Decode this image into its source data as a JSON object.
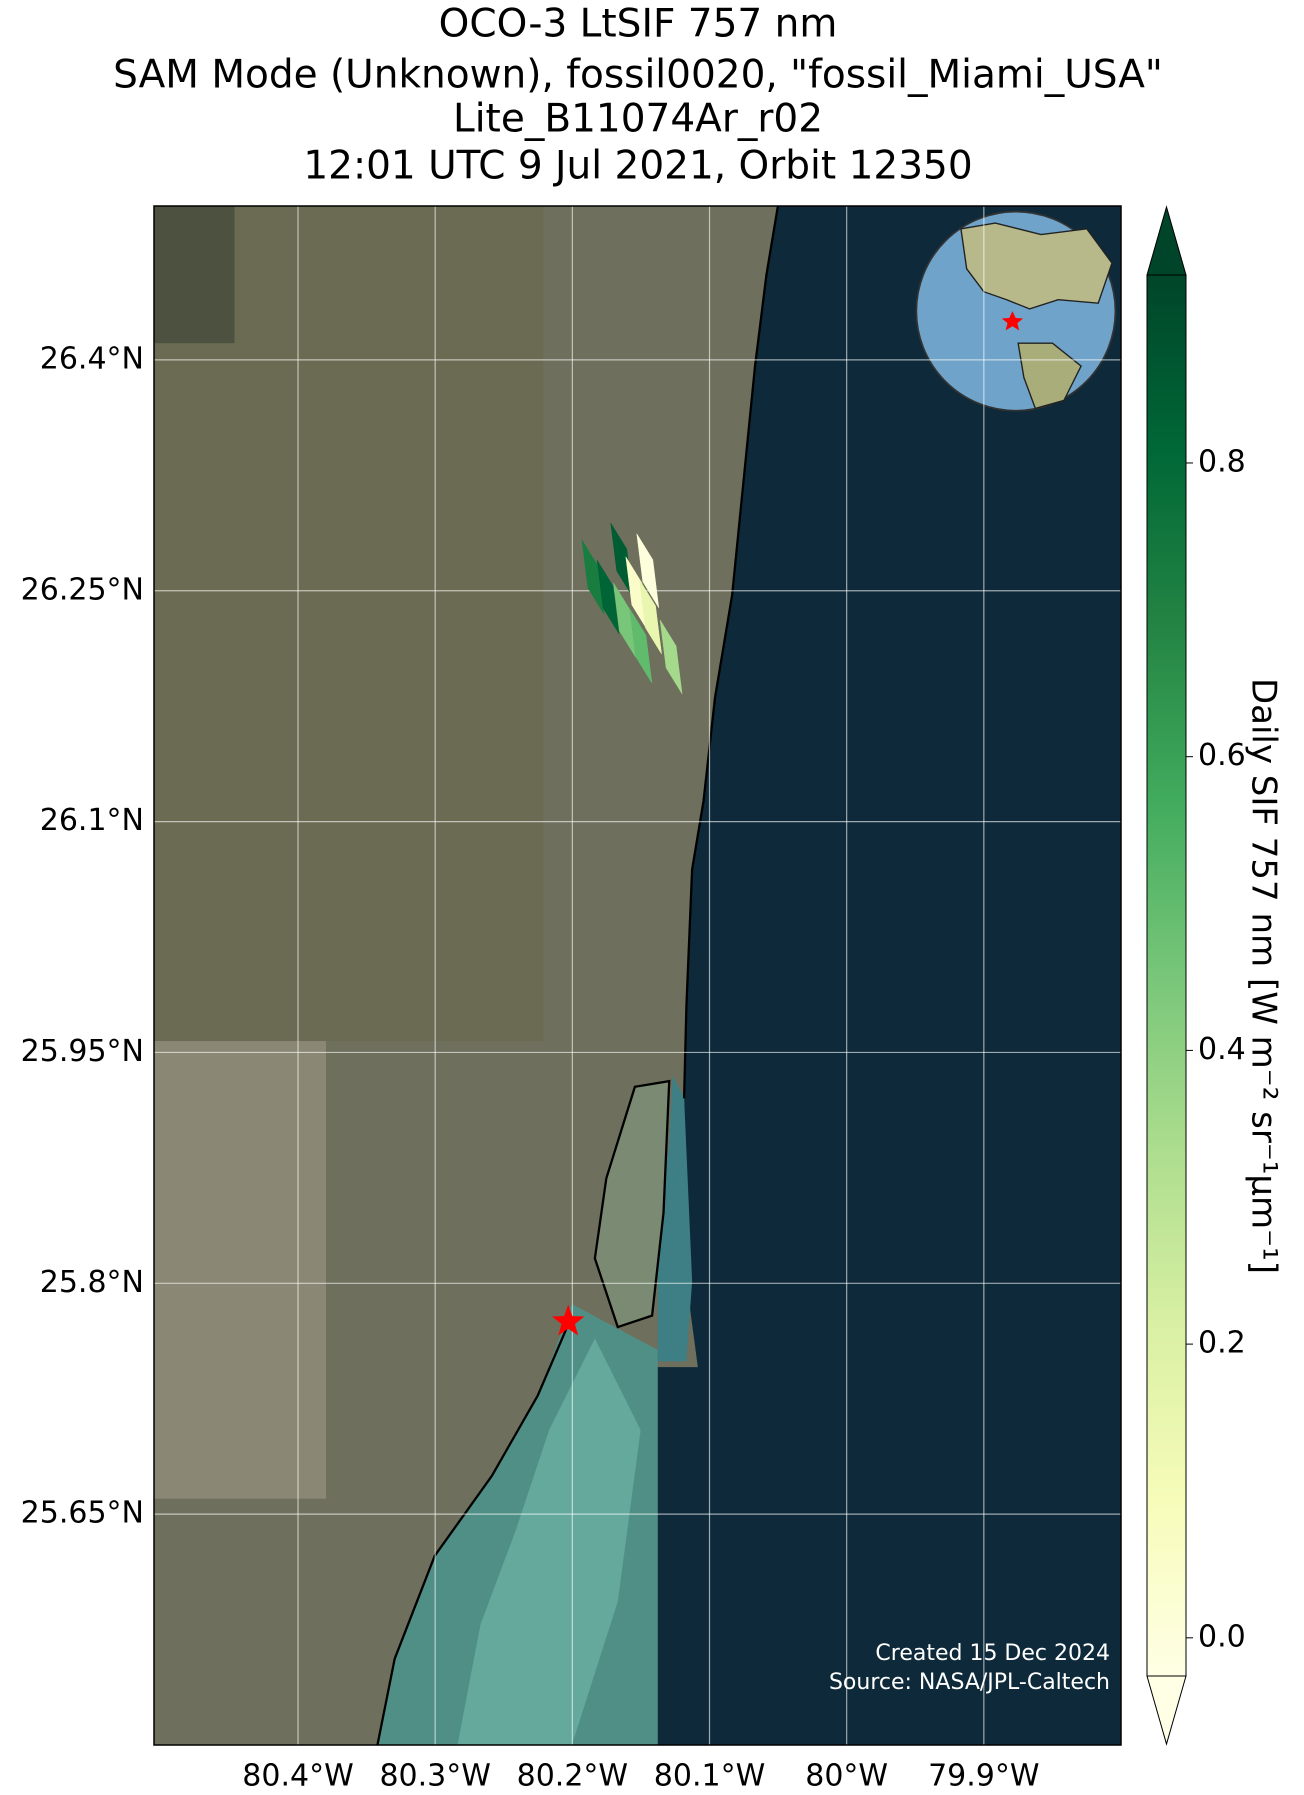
{
  "chart_data": {
    "type": "map",
    "title_lines": [
      "OCO-3 LtSIF 757 nm",
      "SAM Mode (Unknown), fossil0020, \"fossil_Miami_USA\"",
      "Lite_B11074Ar_r02",
      "12:01 UTC 9 Jul 2021, Orbit 12350"
    ],
    "xlim": [
      -80.505,
      -79.8
    ],
    "ylim": [
      25.5,
      26.5
    ],
    "xticks": [
      {
        "value": -80.4,
        "label": "80.4°W"
      },
      {
        "value": -80.3,
        "label": "80.3°W"
      },
      {
        "value": -80.2,
        "label": "80.2°W"
      },
      {
        "value": -80.1,
        "label": "80.1°W"
      },
      {
        "value": -80.0,
        "label": "80°W"
      },
      {
        "value": -79.9,
        "label": "79.9°W"
      }
    ],
    "yticks": [
      {
        "value": 26.4,
        "label": "26.4°N"
      },
      {
        "value": 26.25,
        "label": "26.25°N"
      },
      {
        "value": 26.1,
        "label": "26.1°N"
      },
      {
        "value": 25.95,
        "label": "25.95°N"
      },
      {
        "value": 25.8,
        "label": "25.8°N"
      },
      {
        "value": 25.65,
        "label": "25.65°N"
      }
    ],
    "grid": true,
    "footprints": {
      "lon": [
        -80.185,
        -80.164,
        -80.174,
        -80.162,
        -80.153,
        -80.143,
        -80.15,
        -80.128,
        -80.145
      ],
      "lat": [
        26.259,
        26.27,
        26.246,
        26.231,
        26.248,
        26.233,
        26.214,
        26.207,
        26.263
      ],
      "values": [
        0.72,
        0.85,
        0.82,
        0.45,
        0.05,
        0.15,
        0.5,
        0.35,
        0.0
      ]
    },
    "site": {
      "lon": -80.203,
      "lat": 25.775,
      "color": "#ff0000"
    },
    "colormap": "YlGn",
    "clim": [
      -0.026,
      0.928
    ],
    "colorbar_label": "Daily SIF 757 nm [W m⁻² sr⁻¹μm⁻¹]",
    "colorbar_ticks": [
      {
        "value": 0,
        "label": "0.0"
      },
      0.2,
      0.4,
      0.6,
      0.8
    ],
    "credits": [
      "Created 15 Dec 2024",
      "Source: NASA/JPL-Caltech"
    ]
  }
}
